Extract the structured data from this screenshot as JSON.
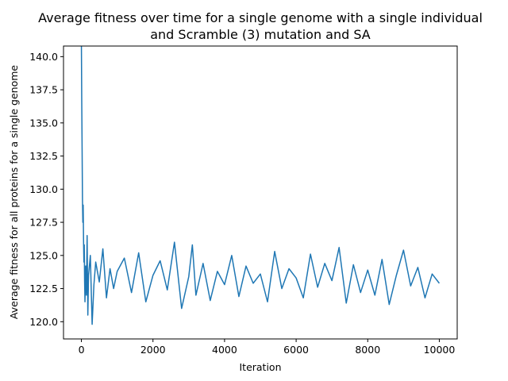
{
  "chart_data": {
    "type": "line",
    "title_lines": [
      "Average fitness over time for a single genome with a single individual",
      "and Scramble (3) mutation and SA"
    ],
    "xlabel": "Iteration",
    "ylabel": "Average fitness for all proteins for a single genome",
    "xlim": [
      -500,
      10500
    ],
    "ylim": [
      118.7,
      140.8
    ],
    "xticks": [
      0,
      2000,
      4000,
      6000,
      8000,
      10000
    ],
    "xtick_labels": [
      "0",
      "2000",
      "4000",
      "6000",
      "8000",
      "10000"
    ],
    "yticks": [
      120.0,
      122.5,
      125.0,
      127.5,
      130.0,
      132.5,
      135.0,
      137.5,
      140.0
    ],
    "ytick_labels": [
      "120.0",
      "122.5",
      "125.0",
      "127.5",
      "130.0",
      "132.5",
      "135.0",
      "137.5",
      "140.0"
    ],
    "grid": false,
    "series": [
      {
        "color": "#1f77b4",
        "x": [
          0,
          10,
          20,
          30,
          40,
          50,
          60,
          70,
          80,
          90,
          100,
          120,
          140,
          160,
          180,
          200,
          250,
          300,
          350,
          400,
          500,
          600,
          700,
          800,
          900,
          1000,
          1200,
          1400,
          1600,
          1800,
          2000,
          2200,
          2400,
          2600,
          2800,
          3000,
          3100,
          3200,
          3400,
          3600,
          3800,
          4000,
          4200,
          4400,
          4600,
          4800,
          5000,
          5200,
          5400,
          5600,
          5800,
          6000,
          6200,
          6400,
          6600,
          6800,
          7000,
          7200,
          7400,
          7600,
          7800,
          8000,
          8200,
          8400,
          8600,
          8800,
          9000,
          9200,
          9400,
          9600,
          9800,
          10000
        ],
        "y": [
          141.0,
          136.5,
          133.0,
          129.2,
          127.5,
          128.8,
          126.2,
          124.5,
          125.8,
          123.0,
          121.5,
          124.2,
          122.0,
          126.5,
          120.5,
          123.5,
          125.0,
          119.8,
          122.8,
          124.5,
          123.0,
          125.5,
          121.8,
          124.0,
          122.5,
          123.8,
          124.8,
          122.2,
          125.2,
          121.5,
          123.5,
          124.6,
          122.4,
          126.0,
          121.0,
          123.4,
          125.8,
          122.0,
          124.4,
          121.6,
          123.8,
          122.8,
          125.0,
          121.9,
          124.2,
          122.9,
          123.6,
          121.5,
          125.3,
          122.5,
          124.0,
          123.3,
          121.8,
          125.1,
          122.6,
          124.4,
          123.1,
          125.6,
          121.4,
          124.3,
          122.2,
          123.9,
          122.0,
          124.7,
          121.3,
          123.5,
          125.4,
          122.7,
          124.1,
          121.8,
          123.6,
          122.9
        ]
      }
    ]
  }
}
